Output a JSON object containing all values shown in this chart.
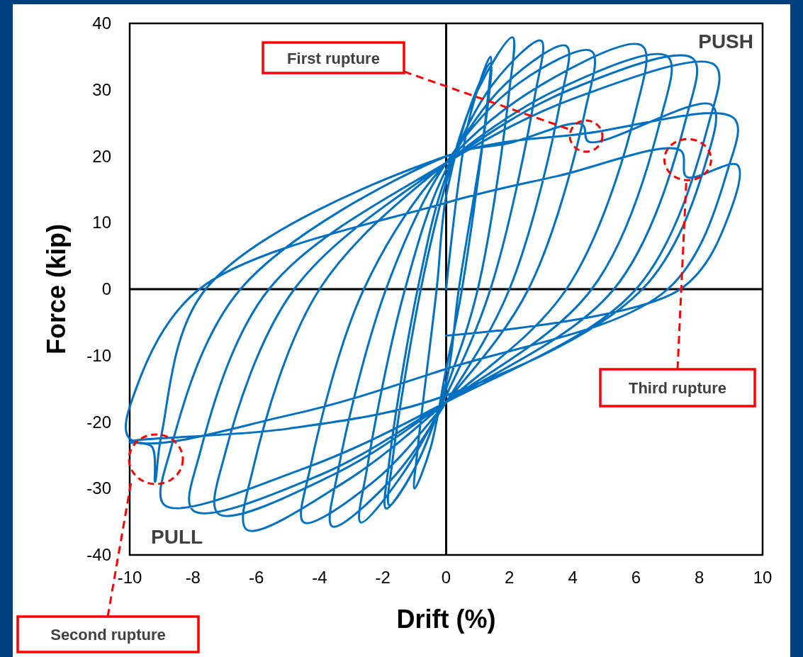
{
  "chart_data": {
    "type": "line",
    "xlabel": "Drift (%)",
    "ylabel": "Force (kip)",
    "xlim": [
      -10,
      10
    ],
    "xticks": [
      -10,
      -8,
      -6,
      -4,
      -2,
      0,
      2,
      4,
      6,
      8,
      10
    ],
    "ylim": [
      -40,
      40
    ],
    "yticks": [
      -40,
      -30,
      -20,
      -10,
      0,
      10,
      20,
      30,
      40
    ],
    "marker": "none",
    "line_style": "solid",
    "annotations": [
      "PUSH",
      "PULL",
      "First rupture",
      "Second rupture",
      {
        "text": "Third rupture",
        "x": 7.59,
        "y": 16.4
      }
    ],
    "series": [
      {
        "color": "#0070c0",
        "x": [
          0,
          0.7,
          1.4,
          1.3,
          0.5,
          0,
          -0.5,
          -1.0,
          -0.9,
          -0.3,
          0,
          0.8,
          1.4,
          1.3,
          0.4,
          0,
          -1.0,
          -1.8,
          -1.7,
          -0.8,
          0,
          1.0,
          2.1,
          2.0,
          1.0,
          0,
          -1.0,
          -1.9,
          -1.8,
          -0.9,
          0,
          1.5,
          3.0,
          2.8,
          1.4,
          0,
          -1.4,
          -2.7,
          -2.5,
          -1.3,
          0,
          1.9,
          3.8,
          3.6,
          2.0,
          0,
          -1.8,
          -3.6,
          -3.4,
          -1.9,
          0,
          2.3,
          4.6,
          4.4,
          2.6,
          0,
          -2.3,
          -4.5,
          -4.3,
          -2.6,
          0,
          3.1,
          6.2,
          6.0,
          3.8,
          0,
          -3.2,
          -6.3,
          -6.1,
          -4.0,
          0,
          3.5,
          7.0,
          6.8,
          4.6,
          0,
          -3.6,
          -7.2,
          -7.0,
          -4.8,
          0,
          3.9,
          7.8,
          7.6,
          5.3,
          0,
          -4.0,
          -8.0,
          -7.8,
          -5.6,
          0,
          4.2,
          8.5,
          8.3,
          6.0,
          0,
          -4.5,
          -8.9,
          -8.7,
          -6.5,
          0,
          2.0,
          4.3,
          4.5,
          8.4,
          8.2,
          6.2,
          0,
          -5,
          -10,
          -9.3,
          -9.2,
          -9.0,
          -7.6,
          0,
          4.5,
          9.1,
          8.9,
          7.0,
          0,
          -5,
          -10,
          -9.8,
          -7.8,
          0,
          3.5,
          7.4,
          7.6,
          9.2,
          9.0,
          7.4,
          0
        ],
        "values": [
          0,
          25,
          35,
          28,
          0,
          -12,
          -24,
          -30,
          -24,
          0,
          14,
          28,
          34,
          27,
          0,
          -14,
          -27,
          -32.5,
          -26,
          0,
          16,
          30,
          37.9,
          30,
          0,
          -15,
          -27,
          -33,
          -26,
          0,
          17,
          31,
          37.4,
          29,
          0,
          -16,
          -28,
          -35.1,
          -27,
          0,
          18,
          31,
          36.6,
          28,
          0,
          -17,
          -29,
          -35.7,
          -27,
          0,
          19,
          31,
          35.8,
          27,
          0,
          -17,
          -29,
          -35.1,
          -27,
          0,
          19,
          31,
          36.6,
          27,
          0,
          -17,
          -29,
          -36.2,
          -27,
          0,
          19,
          30,
          35,
          26,
          0,
          -17,
          -28,
          -33.8,
          -25,
          0,
          19,
          30,
          34.7,
          26,
          0,
          -17,
          -28,
          -33.3,
          -25,
          0,
          19,
          29,
          33.7,
          25,
          0,
          -17,
          -27,
          -32.5,
          -24,
          0,
          20,
          22,
          24.8,
          22.2,
          27.7,
          19,
          0,
          -16,
          -21,
          -23,
          -23.7,
          -29,
          -22,
          0,
          20,
          23.5,
          25.7,
          18,
          0,
          -12,
          -19,
          -22.5,
          -15,
          0,
          13,
          17,
          20.9,
          16.9,
          18.7,
          12,
          0,
          -7
        ]
      }
    ]
  }
}
